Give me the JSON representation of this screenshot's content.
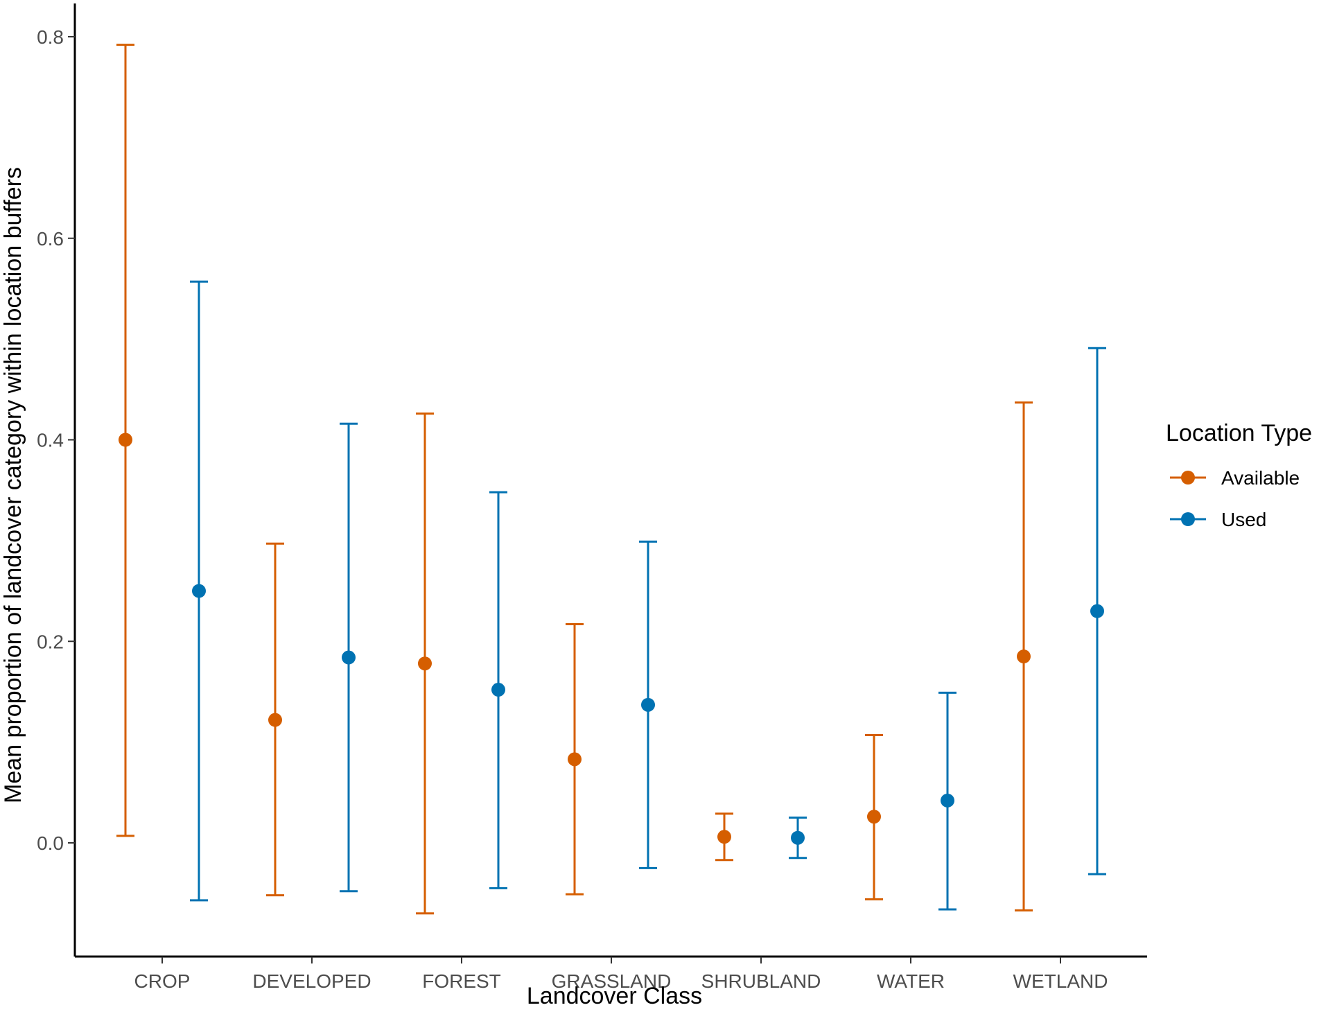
{
  "chart_data": {
    "type": "errorbar-point",
    "title": "",
    "xlabel": "Landcover Class",
    "ylabel": "Mean proportion of landcover category within location buffers",
    "categories": [
      "CROP",
      "DEVELOPED",
      "FOREST",
      "GRASSLAND",
      "SHRUBLAND",
      "WATER",
      "WETLAND"
    ],
    "yticks": [
      0.0,
      0.2,
      0.4,
      0.6,
      0.8
    ],
    "ytick_labels": [
      "0.0",
      "0.2",
      "0.4",
      "0.6",
      "0.8"
    ],
    "ylim": [
      -0.11,
      0.835
    ],
    "legend": {
      "title": "Location Type",
      "position": "right"
    },
    "series": [
      {
        "name": "Available",
        "color": "#D55E00",
        "mean": [
          0.4,
          0.122,
          0.178,
          0.083,
          0.006,
          0.026,
          0.185
        ],
        "lower": [
          0.007,
          -0.052,
          -0.07,
          -0.051,
          -0.017,
          -0.056,
          -0.067
        ],
        "upper": [
          0.792,
          0.297,
          0.426,
          0.217,
          0.029,
          0.107,
          0.437
        ]
      },
      {
        "name": "Used",
        "color": "#0072B2",
        "mean": [
          0.25,
          0.184,
          0.152,
          0.137,
          0.005,
          0.042,
          0.23
        ],
        "lower": [
          -0.057,
          -0.048,
          -0.045,
          -0.025,
          -0.015,
          -0.066,
          -0.031
        ],
        "upper": [
          0.557,
          0.416,
          0.348,
          0.299,
          0.025,
          0.149,
          0.491
        ]
      }
    ]
  }
}
